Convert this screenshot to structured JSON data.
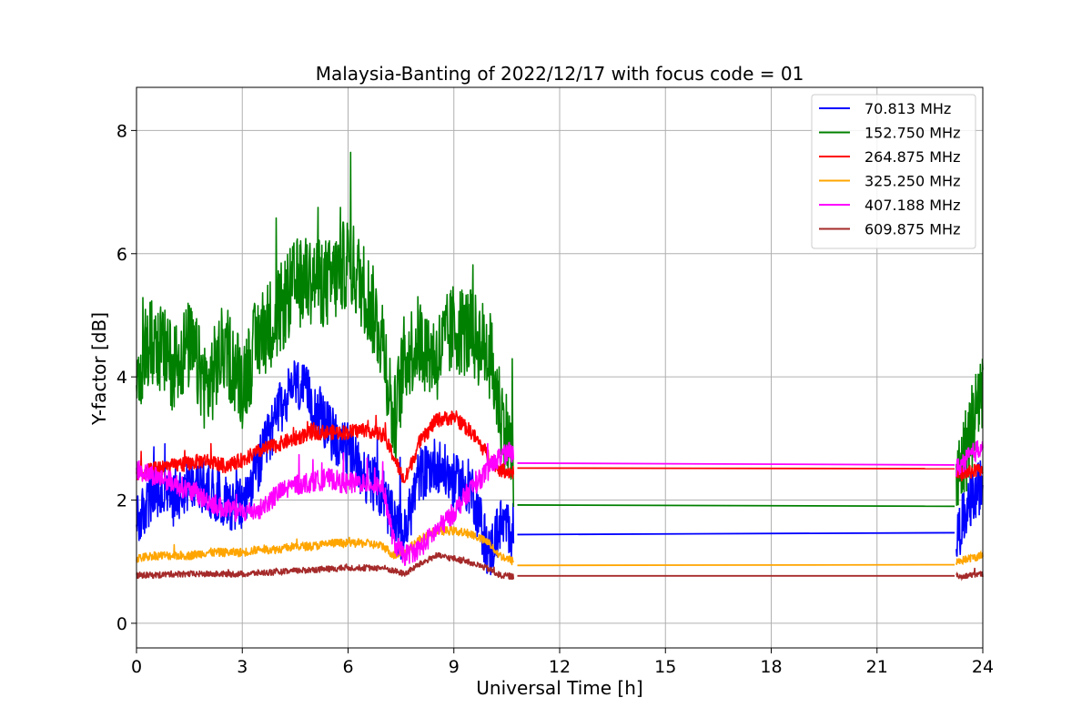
{
  "chart_data": {
    "type": "line",
    "title": "Malaysia-Banting of 2022/12/17 with focus code = 01",
    "xlabel": "Universal Time [h]",
    "ylabel": "Y-factor [dB]",
    "xlim": [
      0,
      24
    ],
    "ylim": [
      -0.4,
      8.7
    ],
    "xticks": [
      0,
      3,
      6,
      9,
      12,
      15,
      18,
      21,
      24
    ],
    "yticks": [
      0,
      2,
      4,
      6,
      8
    ],
    "grid": true,
    "legend_position": "top-right",
    "series": [
      {
        "name": " 70.813 MHz",
        "color": "#0000ff",
        "noise": 0.45,
        "points": [
          [
            0,
            1.6
          ],
          [
            0.5,
            2.1
          ],
          [
            1,
            2.0
          ],
          [
            1.5,
            2.3
          ],
          [
            2,
            2.2
          ],
          [
            2.5,
            2.0
          ],
          [
            3,
            1.9
          ],
          [
            3.5,
            2.6
          ],
          [
            4,
            3.4
          ],
          [
            4.5,
            3.9
          ],
          [
            5,
            3.6
          ],
          [
            5.5,
            3.1
          ],
          [
            6,
            2.8
          ],
          [
            6.5,
            2.4
          ],
          [
            7,
            2.1
          ],
          [
            7.3,
            1.6
          ],
          [
            7.6,
            1.4
          ],
          [
            8,
            2.4
          ],
          [
            8.5,
            2.6
          ],
          [
            9,
            2.3
          ],
          [
            9.5,
            2.2
          ],
          [
            10,
            1.1
          ],
          [
            10.3,
            1.6
          ],
          [
            10.7,
            1.5
          ]
        ],
        "flat": [
          [
            10.8,
            1.44
          ],
          [
            23.2,
            1.47
          ]
        ],
        "tail": [
          [
            23.25,
            1.4
          ],
          [
            23.6,
            1.9
          ],
          [
            24,
            2.3
          ]
        ]
      },
      {
        "name": "152.750 MHz",
        "color": "#008000",
        "noise": 0.75,
        "points": [
          [
            0,
            4.2
          ],
          [
            0.5,
            4.6
          ],
          [
            1,
            4.2
          ],
          [
            1.5,
            4.5
          ],
          [
            2,
            3.8
          ],
          [
            2.5,
            4.5
          ],
          [
            3,
            3.9
          ],
          [
            3.5,
            4.7
          ],
          [
            4,
            5.0
          ],
          [
            4.5,
            5.5
          ],
          [
            5,
            5.6
          ],
          [
            5.5,
            5.5
          ],
          [
            6,
            5.9
          ],
          [
            6.5,
            5.4
          ],
          [
            7,
            4.6
          ],
          [
            7.3,
            3.2
          ],
          [
            7.6,
            4.3
          ],
          [
            8,
            4.6
          ],
          [
            8.5,
            4.3
          ],
          [
            9,
            4.8
          ],
          [
            9.5,
            4.7
          ],
          [
            10,
            4.4
          ],
          [
            10.3,
            3.5
          ],
          [
            10.7,
            2.6
          ]
        ],
        "flat": [
          [
            10.8,
            1.92
          ],
          [
            23.2,
            1.9
          ]
        ],
        "tail": [
          [
            23.25,
            2.2
          ],
          [
            23.6,
            3.0
          ],
          [
            24,
            3.9
          ]
        ]
      },
      {
        "name": "264.875 MHz",
        "color": "#ff0000",
        "noise": 0.12,
        "points": [
          [
            0,
            2.4
          ],
          [
            0.5,
            2.5
          ],
          [
            1,
            2.55
          ],
          [
            1.5,
            2.6
          ],
          [
            2,
            2.65
          ],
          [
            2.5,
            2.55
          ],
          [
            3,
            2.65
          ],
          [
            3.5,
            2.8
          ],
          [
            4,
            2.9
          ],
          [
            4.5,
            3.0
          ],
          [
            5,
            3.1
          ],
          [
            5.5,
            3.1
          ],
          [
            6,
            3.1
          ],
          [
            6.5,
            3.15
          ],
          [
            7,
            3.05
          ],
          [
            7.3,
            2.7
          ],
          [
            7.6,
            2.3
          ],
          [
            8,
            2.9
          ],
          [
            8.5,
            3.3
          ],
          [
            9,
            3.35
          ],
          [
            9.5,
            3.1
          ],
          [
            10,
            2.7
          ],
          [
            10.3,
            2.5
          ],
          [
            10.7,
            2.45
          ]
        ],
        "flat": [
          [
            10.8,
            2.52
          ],
          [
            23.2,
            2.51
          ]
        ],
        "tail": [
          [
            23.25,
            2.4
          ],
          [
            23.6,
            2.45
          ],
          [
            24,
            2.5
          ]
        ]
      },
      {
        "name": "325.250 MHz",
        "color": "#ffa500",
        "noise": 0.07,
        "points": [
          [
            0,
            1.05
          ],
          [
            0.5,
            1.1
          ],
          [
            1,
            1.1
          ],
          [
            1.5,
            1.1
          ],
          [
            2,
            1.15
          ],
          [
            2.5,
            1.15
          ],
          [
            3,
            1.15
          ],
          [
            3.5,
            1.2
          ],
          [
            4,
            1.2
          ],
          [
            4.5,
            1.25
          ],
          [
            5,
            1.25
          ],
          [
            5.5,
            1.3
          ],
          [
            6,
            1.3
          ],
          [
            6.5,
            1.3
          ],
          [
            7,
            1.25
          ],
          [
            7.3,
            1.1
          ],
          [
            7.6,
            1.15
          ],
          [
            8,
            1.35
          ],
          [
            8.5,
            1.5
          ],
          [
            9,
            1.5
          ],
          [
            9.5,
            1.45
          ],
          [
            10,
            1.3
          ],
          [
            10.3,
            1.1
          ],
          [
            10.7,
            1.0
          ]
        ],
        "flat": [
          [
            10.8,
            0.94
          ],
          [
            23.2,
            0.95
          ]
        ],
        "tail": [
          [
            23.25,
            1.0
          ],
          [
            23.6,
            1.05
          ],
          [
            24,
            1.1
          ]
        ]
      },
      {
        "name": "407.188 MHz",
        "color": "#ff00ff",
        "noise": 0.17,
        "points": [
          [
            0,
            2.5
          ],
          [
            0.5,
            2.4
          ],
          [
            1,
            2.3
          ],
          [
            1.5,
            2.15
          ],
          [
            2,
            2.0
          ],
          [
            2.5,
            1.85
          ],
          [
            3,
            1.8
          ],
          [
            3.5,
            1.85
          ],
          [
            4,
            2.1
          ],
          [
            4.5,
            2.25
          ],
          [
            5,
            2.3
          ],
          [
            5.5,
            2.35
          ],
          [
            6,
            2.25
          ],
          [
            6.5,
            2.3
          ],
          [
            7,
            2.2
          ],
          [
            7.3,
            1.3
          ],
          [
            7.6,
            1.1
          ],
          [
            8,
            1.2
          ],
          [
            8.5,
            1.5
          ],
          [
            9,
            1.8
          ],
          [
            9.5,
            2.2
          ],
          [
            10,
            2.5
          ],
          [
            10.3,
            2.7
          ],
          [
            10.7,
            2.8
          ]
        ],
        "flat": [
          [
            10.8,
            2.6
          ],
          [
            23.2,
            2.57
          ]
        ],
        "tail": [
          [
            23.25,
            2.5
          ],
          [
            23.6,
            2.7
          ],
          [
            24,
            2.9
          ]
        ]
      },
      {
        "name": "609.875 MHz",
        "color": "#a52a2a",
        "noise": 0.05,
        "points": [
          [
            0,
            0.78
          ],
          [
            0.5,
            0.78
          ],
          [
            1,
            0.8
          ],
          [
            1.5,
            0.8
          ],
          [
            2,
            0.8
          ],
          [
            2.5,
            0.8
          ],
          [
            3,
            0.8
          ],
          [
            3.5,
            0.82
          ],
          [
            4,
            0.83
          ],
          [
            4.5,
            0.85
          ],
          [
            5,
            0.87
          ],
          [
            5.5,
            0.88
          ],
          [
            6,
            0.9
          ],
          [
            6.5,
            0.9
          ],
          [
            7,
            0.9
          ],
          [
            7.3,
            0.85
          ],
          [
            7.6,
            0.8
          ],
          [
            8,
            0.95
          ],
          [
            8.5,
            1.1
          ],
          [
            9,
            1.05
          ],
          [
            9.5,
            0.98
          ],
          [
            10,
            0.88
          ],
          [
            10.3,
            0.78
          ],
          [
            10.7,
            0.76
          ]
        ],
        "flat": [
          [
            10.8,
            0.77
          ],
          [
            23.2,
            0.77
          ]
        ],
        "tail": [
          [
            23.25,
            0.75
          ],
          [
            23.6,
            0.78
          ],
          [
            24,
            0.8
          ]
        ]
      }
    ]
  }
}
